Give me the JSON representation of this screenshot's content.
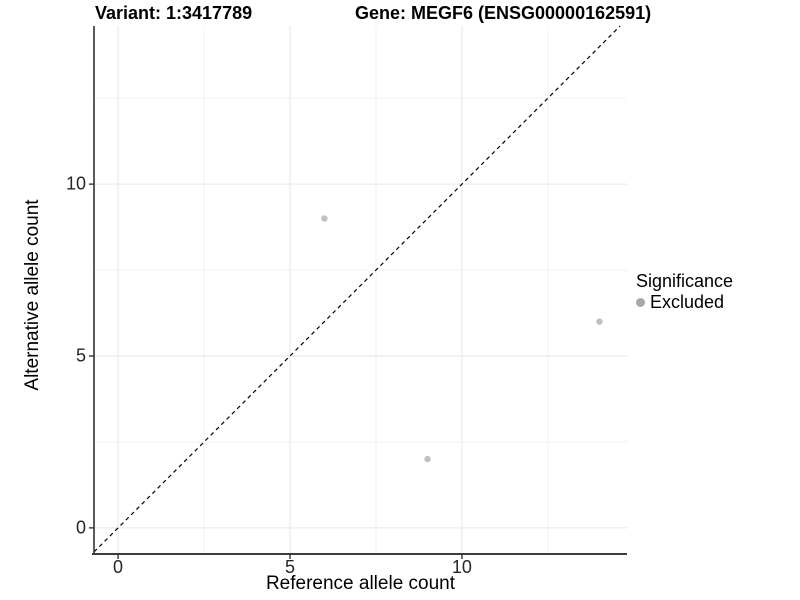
{
  "header": {
    "variant_title": "Variant: 1:3417789",
    "gene_title": "Gene: MEGF6 (ENSG00000162591)"
  },
  "chart_data": {
    "type": "scatter",
    "titles": {
      "left": "Variant: 1:3417789",
      "right": "Gene: MEGF6 (ENSG00000162591)"
    },
    "xlabel": "Reference allele count",
    "ylabel": "Alternative allele count",
    "xlim": [
      -0.7,
      14.8
    ],
    "ylim": [
      -0.76,
      14.6
    ],
    "x_ticks": [
      0,
      5,
      10
    ],
    "y_ticks": [
      0,
      5,
      10
    ],
    "x_minor_ticks": [
      2.5,
      7.5,
      12.5
    ],
    "y_minor_ticks": [
      2.5,
      7.5,
      12.5
    ],
    "grid": true,
    "identity_line": {
      "style": "dashed",
      "equation": "y = x",
      "color": "#000000"
    },
    "series": [
      {
        "name": "Excluded",
        "color": "#c0c0c0",
        "points": [
          {
            "x": 6,
            "y": 9
          },
          {
            "x": 9,
            "y": 2
          },
          {
            "x": 14,
            "y": 6
          }
        ]
      }
    ],
    "legend": {
      "title": "Significance",
      "position": "right",
      "items": [
        {
          "label": "Excluded",
          "color": "#a8a8a8"
        }
      ]
    },
    "colors": {
      "background": "#ffffff",
      "grid_major": "#e6e6e6",
      "grid_minor": "#f2f2f2",
      "axis_line": "#3d3d3d",
      "tick_mark": "#333333",
      "text": "#000000"
    }
  }
}
